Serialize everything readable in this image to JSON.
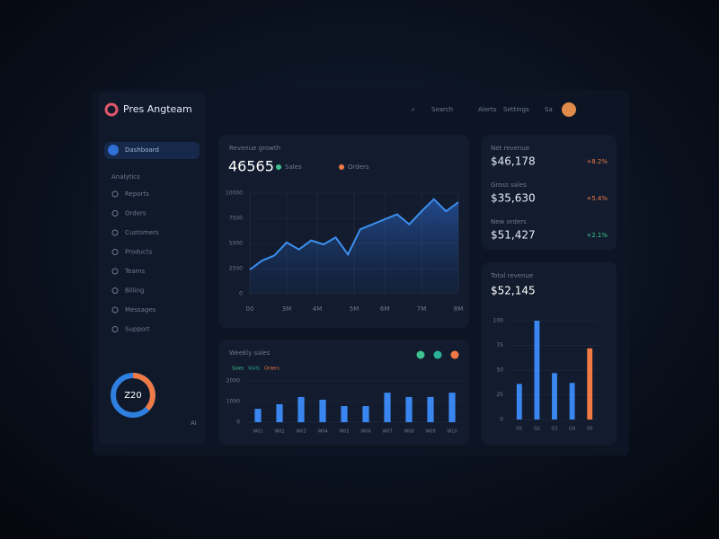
{
  "header": {
    "title": "Pres Angteam",
    "nav": [
      "Search",
      "Alerts",
      "Settings",
      "Sa"
    ]
  },
  "sidebar": {
    "active": "Dashboard",
    "section": "Analytics",
    "items": [
      "Reports",
      "Orders",
      "Customers",
      "Products",
      "Teams",
      "Billing",
      "Messages",
      "Support"
    ],
    "donut_label": "Z20",
    "footer": "Ai"
  },
  "stats": [
    {
      "label": "Net revenue",
      "value": "$46,178",
      "change": "+8.2%",
      "color": "#f07a45"
    },
    {
      "label": "Gross sales",
      "value": "$35,630",
      "change": "+5.4%",
      "color": "#f07a45"
    },
    {
      "label": "New orders",
      "value": "$51,427",
      "change": "+2.1%",
      "color": "#3ec28f"
    }
  ],
  "chart_data": [
    {
      "type": "line",
      "title": "Revenue growth",
      "headline": "46565",
      "legend": [
        {
          "name": "Sales",
          "color": "#3ec28f"
        },
        {
          "name": "Orders",
          "color": "#f07a45"
        }
      ],
      "x": [
        0,
        1,
        2,
        3,
        4,
        5,
        6,
        7,
        8,
        9,
        10,
        11,
        12,
        13,
        14,
        15,
        16,
        17
      ],
      "series": [
        {
          "name": "Revenue",
          "color": "#3b8ff0",
          "values": [
            2400,
            3300,
            3800,
            5100,
            4400,
            5300,
            4900,
            5600,
            3900,
            6400,
            6900,
            7400,
            7900,
            6900,
            8200,
            9400,
            8200,
            9100
          ]
        }
      ],
      "xlim": [
        0,
        17
      ],
      "xticks": [
        {
          "value": 0,
          "label": "00"
        },
        {
          "value": 3,
          "label": "3M"
        },
        {
          "value": 5.5,
          "label": "4M"
        },
        {
          "value": 8.5,
          "label": "5M"
        },
        {
          "value": 11,
          "label": "6M"
        },
        {
          "value": 14,
          "label": "7M"
        },
        {
          "value": 17,
          "label": "8M"
        }
      ],
      "ylim": [
        0,
        10000
      ],
      "yticks": [
        0,
        2500,
        5000,
        7500,
        10000
      ]
    },
    {
      "type": "bar",
      "title": "Weekly sales",
      "legend": [
        {
          "name": "Sales",
          "color": "#3ec28f"
        },
        {
          "name": "Visits",
          "color": "#2bb39a"
        },
        {
          "name": "Orders",
          "color": "#f07a45"
        }
      ],
      "categories": [
        "W01",
        "W02",
        "W03",
        "W04",
        "W05",
        "W06",
        "W07",
        "W08",
        "W09",
        "W10"
      ],
      "values": [
        650,
        870,
        1220,
        1090,
        780,
        780,
        1430,
        1220,
        1220,
        1430
      ],
      "color": "#3a86f0",
      "ylim": [
        0,
        2000
      ],
      "yticks": [
        0,
        1000,
        2000
      ]
    },
    {
      "type": "bar",
      "title": "Total revenue",
      "headline": "$52,145",
      "categories": [
        "Q1",
        "Q2",
        "Q3",
        "Q4",
        "Q5"
      ],
      "values": [
        36,
        100,
        47,
        37,
        72
      ],
      "colors": [
        "#3a86f0",
        "#3a86f0",
        "#3a86f0",
        "#3a86f0",
        "#f07a45"
      ],
      "ylim": [
        0,
        100
      ],
      "yticks": [
        0,
        25,
        50,
        75,
        100
      ]
    }
  ]
}
